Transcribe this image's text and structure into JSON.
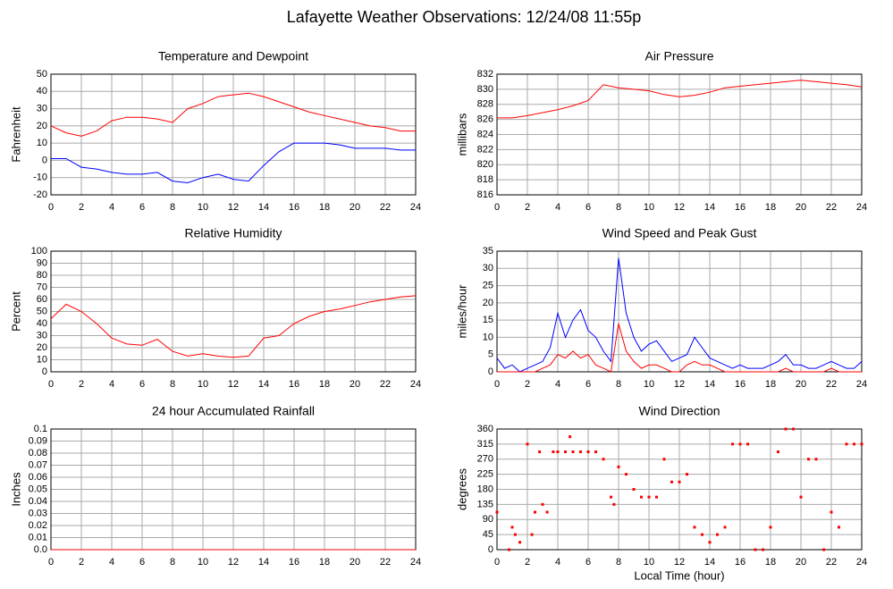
{
  "title": "Lafayette Weather Observations: 12/24/08 11:55p",
  "chart_data": [
    {
      "type": "line",
      "title": "Temperature and Dewpoint",
      "ylabel": "Fahrenheit",
      "grid": true,
      "xlim": [
        0,
        24
      ],
      "xticks": [
        0,
        2,
        4,
        6,
        8,
        10,
        12,
        14,
        16,
        18,
        20,
        22,
        24
      ],
      "ylim": [
        -20,
        50
      ],
      "yticks": [
        -20,
        -10,
        0,
        10,
        20,
        30,
        40,
        50
      ],
      "x": [
        0,
        1,
        2,
        3,
        4,
        5,
        6,
        7,
        8,
        9,
        10,
        11,
        12,
        13,
        14,
        15,
        16,
        17,
        18,
        19,
        20,
        21,
        22,
        23,
        24
      ],
      "series": [
        {
          "color": "#ff0000",
          "values": [
            20,
            16,
            14,
            17,
            23,
            25,
            25,
            24,
            22,
            30,
            33,
            37,
            38,
            39,
            37,
            34,
            31,
            28,
            26,
            24,
            22,
            20,
            19,
            17,
            17
          ]
        },
        {
          "color": "#0000ff",
          "values": [
            1,
            1,
            -4,
            -5,
            -7,
            -8,
            -8,
            -7,
            -12,
            -13,
            -10,
            -8,
            -11,
            -12,
            -3,
            5,
            10,
            10,
            10,
            9,
            7,
            7,
            7,
            6,
            6
          ]
        }
      ]
    },
    {
      "type": "line",
      "title": "Air Pressure",
      "ylabel": "millibars",
      "grid": true,
      "xlim": [
        0,
        24
      ],
      "xticks": [
        0,
        2,
        4,
        6,
        8,
        10,
        12,
        14,
        16,
        18,
        20,
        22,
        24
      ],
      "ylim": [
        816,
        832
      ],
      "yticks": [
        816,
        818,
        820,
        822,
        824,
        826,
        828,
        830,
        832
      ],
      "x": [
        0,
        1,
        2,
        3,
        4,
        5,
        6,
        7,
        8,
        9,
        10,
        11,
        12,
        13,
        14,
        15,
        16,
        17,
        18,
        19,
        20,
        21,
        22,
        23,
        24
      ],
      "series": [
        {
          "color": "#ff0000",
          "values": [
            826.2,
            826.2,
            826.5,
            826.9,
            827.3,
            827.8,
            828.5,
            830.6,
            830.2,
            830.0,
            829.8,
            829.3,
            829.0,
            829.2,
            829.6,
            830.2,
            830.4,
            830.6,
            830.8,
            831.0,
            831.2,
            831.0,
            830.8,
            830.6,
            830.3
          ]
        }
      ]
    },
    {
      "type": "line",
      "title": "Relative Humidity",
      "ylabel": "Percent",
      "grid": true,
      "xlim": [
        0,
        24
      ],
      "xticks": [
        0,
        2,
        4,
        6,
        8,
        10,
        12,
        14,
        16,
        18,
        20,
        22,
        24
      ],
      "ylim": [
        0,
        100
      ],
      "yticks": [
        0,
        10,
        20,
        30,
        40,
        50,
        60,
        70,
        80,
        90,
        100
      ],
      "x": [
        0,
        1,
        2,
        3,
        4,
        5,
        6,
        7,
        8,
        9,
        10,
        11,
        12,
        13,
        14,
        15,
        16,
        17,
        18,
        19,
        20,
        21,
        22,
        23,
        24
      ],
      "series": [
        {
          "color": "#ff0000",
          "values": [
            44,
            56,
            50,
            40,
            28,
            23,
            22,
            27,
            17,
            13,
            15,
            13,
            12,
            13,
            28,
            30,
            40,
            46,
            50,
            52,
            55,
            58,
            60,
            62,
            63
          ]
        }
      ]
    },
    {
      "type": "line",
      "title": "Wind Speed and Peak Gust",
      "ylabel": "miles/hour",
      "grid": true,
      "xlim": [
        0,
        24
      ],
      "xticks": [
        0,
        2,
        4,
        6,
        8,
        10,
        12,
        14,
        16,
        18,
        20,
        22,
        24
      ],
      "ylim": [
        0,
        35
      ],
      "yticks": [
        0,
        5,
        10,
        15,
        20,
        25,
        30,
        35
      ],
      "x": [
        0,
        0.5,
        1,
        1.5,
        2,
        2.5,
        3,
        3.5,
        4,
        4.5,
        5,
        5.5,
        6,
        6.5,
        7,
        7.5,
        8,
        8.5,
        9,
        9.5,
        10,
        10.5,
        11,
        11.5,
        12,
        12.5,
        13,
        13.5,
        14,
        14.5,
        15,
        15.5,
        16,
        16.5,
        17,
        17.5,
        18,
        18.5,
        19,
        19.5,
        20,
        20.5,
        21,
        21.5,
        22,
        22.5,
        23,
        23.5,
        24
      ],
      "series": [
        {
          "color": "#0000ff",
          "values": [
            4,
            1,
            2,
            0,
            1,
            2,
            3,
            7,
            17,
            10,
            15,
            18,
            12,
            10,
            6,
            3,
            33,
            17,
            10,
            6,
            8,
            9,
            6,
            3,
            4,
            5,
            10,
            7,
            4,
            3,
            2,
            1,
            2,
            1,
            1,
            1,
            2,
            3,
            5,
            2,
            2,
            1,
            1,
            2,
            3,
            2,
            1,
            1,
            3
          ]
        },
        {
          "color": "#ff0000",
          "values": [
            0,
            0,
            0,
            0,
            0,
            0,
            1,
            2,
            5,
            4,
            6,
            4,
            5,
            2,
            1,
            0,
            14,
            6,
            3,
            1,
            2,
            2,
            1,
            0,
            0,
            2,
            3,
            2,
            2,
            1,
            0,
            0,
            0,
            0,
            0,
            0,
            0,
            0,
            1,
            0,
            0,
            0,
            0,
            0,
            1,
            0,
            0,
            0,
            0
          ]
        }
      ]
    },
    {
      "type": "line",
      "title": "24 hour Accumulated Rainfall",
      "ylabel": "Inches",
      "grid": true,
      "xlim": [
        0,
        24
      ],
      "xticks": [
        0,
        2,
        4,
        6,
        8,
        10,
        12,
        14,
        16,
        18,
        20,
        22,
        24
      ],
      "ylim": [
        0,
        0.1
      ],
      "yticks": [
        {
          "value": 0,
          "label": "0.0"
        },
        0.01,
        0.02,
        0.03,
        0.04,
        0.05,
        0.06,
        0.07,
        0.08,
        0.09,
        0.1
      ],
      "x": [
        0,
        24
      ],
      "series": [
        {
          "color": "#ff0000",
          "values": [
            0,
            0
          ]
        }
      ]
    },
    {
      "type": "scatter",
      "title": "Wind Direction",
      "ylabel": "degrees",
      "xlabel": "Local Time (hour)",
      "grid": true,
      "xlim": [
        0,
        24
      ],
      "xticks": [
        0,
        2,
        4,
        6,
        8,
        10,
        12,
        14,
        16,
        18,
        20,
        22,
        24
      ],
      "ylim": [
        0,
        360
      ],
      "yticks": [
        0,
        45,
        90,
        135,
        180,
        225,
        270,
        315,
        360
      ],
      "x": [
        0,
        0.8,
        1,
        1.2,
        1.5,
        2,
        2.3,
        2.5,
        2.8,
        3,
        3.3,
        3.7,
        4,
        4.5,
        4.8,
        5,
        5.5,
        6,
        6.5,
        7,
        7.5,
        7.7,
        8,
        8.5,
        9,
        9.5,
        10,
        10.5,
        11,
        11.5,
        12,
        12.5,
        13,
        13.5,
        14,
        14.5,
        15,
        15.5,
        16,
        16.5,
        17,
        17.5,
        18,
        18.5,
        19,
        19.5,
        20,
        20.5,
        21,
        21.5,
        22,
        22.5,
        23,
        23.5,
        24
      ],
      "series": [
        {
          "color": "#ff0000",
          "values": [
            112,
            0,
            67,
            45,
            22,
            315,
            45,
            112,
            292,
            135,
            112,
            292,
            292,
            292,
            337,
            292,
            292,
            292,
            292,
            270,
            157,
            135,
            247,
            225,
            180,
            157,
            157,
            157,
            270,
            202,
            202,
            225,
            67,
            45,
            22,
            45,
            67,
            315,
            315,
            315,
            0,
            0,
            67,
            292,
            360,
            360,
            157,
            270,
            270,
            0,
            112,
            67,
            315,
            315,
            315
          ]
        }
      ]
    }
  ]
}
